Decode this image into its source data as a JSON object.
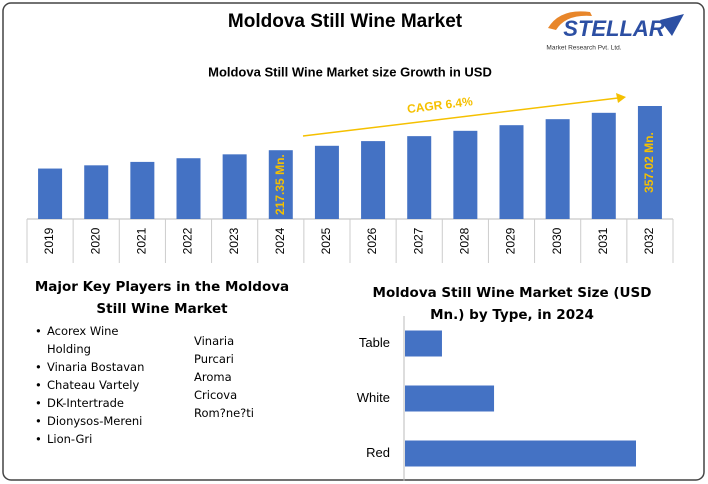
{
  "header": {
    "title": "Moldova Still Wine Market",
    "logo": {
      "name": "STELLAR",
      "tagline": "Market Research Pvt. Ltd."
    }
  },
  "key_players": {
    "title": "Major Key Players in the Moldova Still Wine Market",
    "column1": [
      "Acorex Wine Holding",
      "Vinaria Bostavan",
      "Chateau Vartely",
      "DK-Intertrade",
      "Dionysos-Mereni",
      "Lion-Gri"
    ],
    "column2": [
      "Vinaria",
      "Purcari",
      "Aroma",
      "Cricova",
      "Rom?ne?ti"
    ]
  },
  "chart_data": [
    {
      "type": "bar",
      "title": "Moldova Still Wine Market size Growth in USD",
      "categories": [
        "2019",
        "2020",
        "2021",
        "2022",
        "2023",
        "2024",
        "2025",
        "2026",
        "2027",
        "2028",
        "2029",
        "2030",
        "2031",
        "2032"
      ],
      "values": [
        159.4,
        169.6,
        180.4,
        192.0,
        204.3,
        217.35,
        231.3,
        246.1,
        261.8,
        278.6,
        296.4,
        315.4,
        335.5,
        357.02
      ],
      "value_labels": [
        null,
        null,
        null,
        null,
        null,
        "217.35 Mn.",
        null,
        null,
        null,
        null,
        null,
        null,
        null,
        "357.02 Mn."
      ],
      "color": "#4472c4",
      "label_color": "#f5c000",
      "annotation": "CAGR 6.4%"
    },
    {
      "type": "hbar",
      "title": "Moldova Still Wine Market Size (USD Mn.) by Type, in 2024",
      "categories": [
        "Table",
        "White",
        "Red"
      ],
      "values": [
        22.5,
        54.2,
        140.6
      ],
      "color": "#4472c4"
    }
  ]
}
